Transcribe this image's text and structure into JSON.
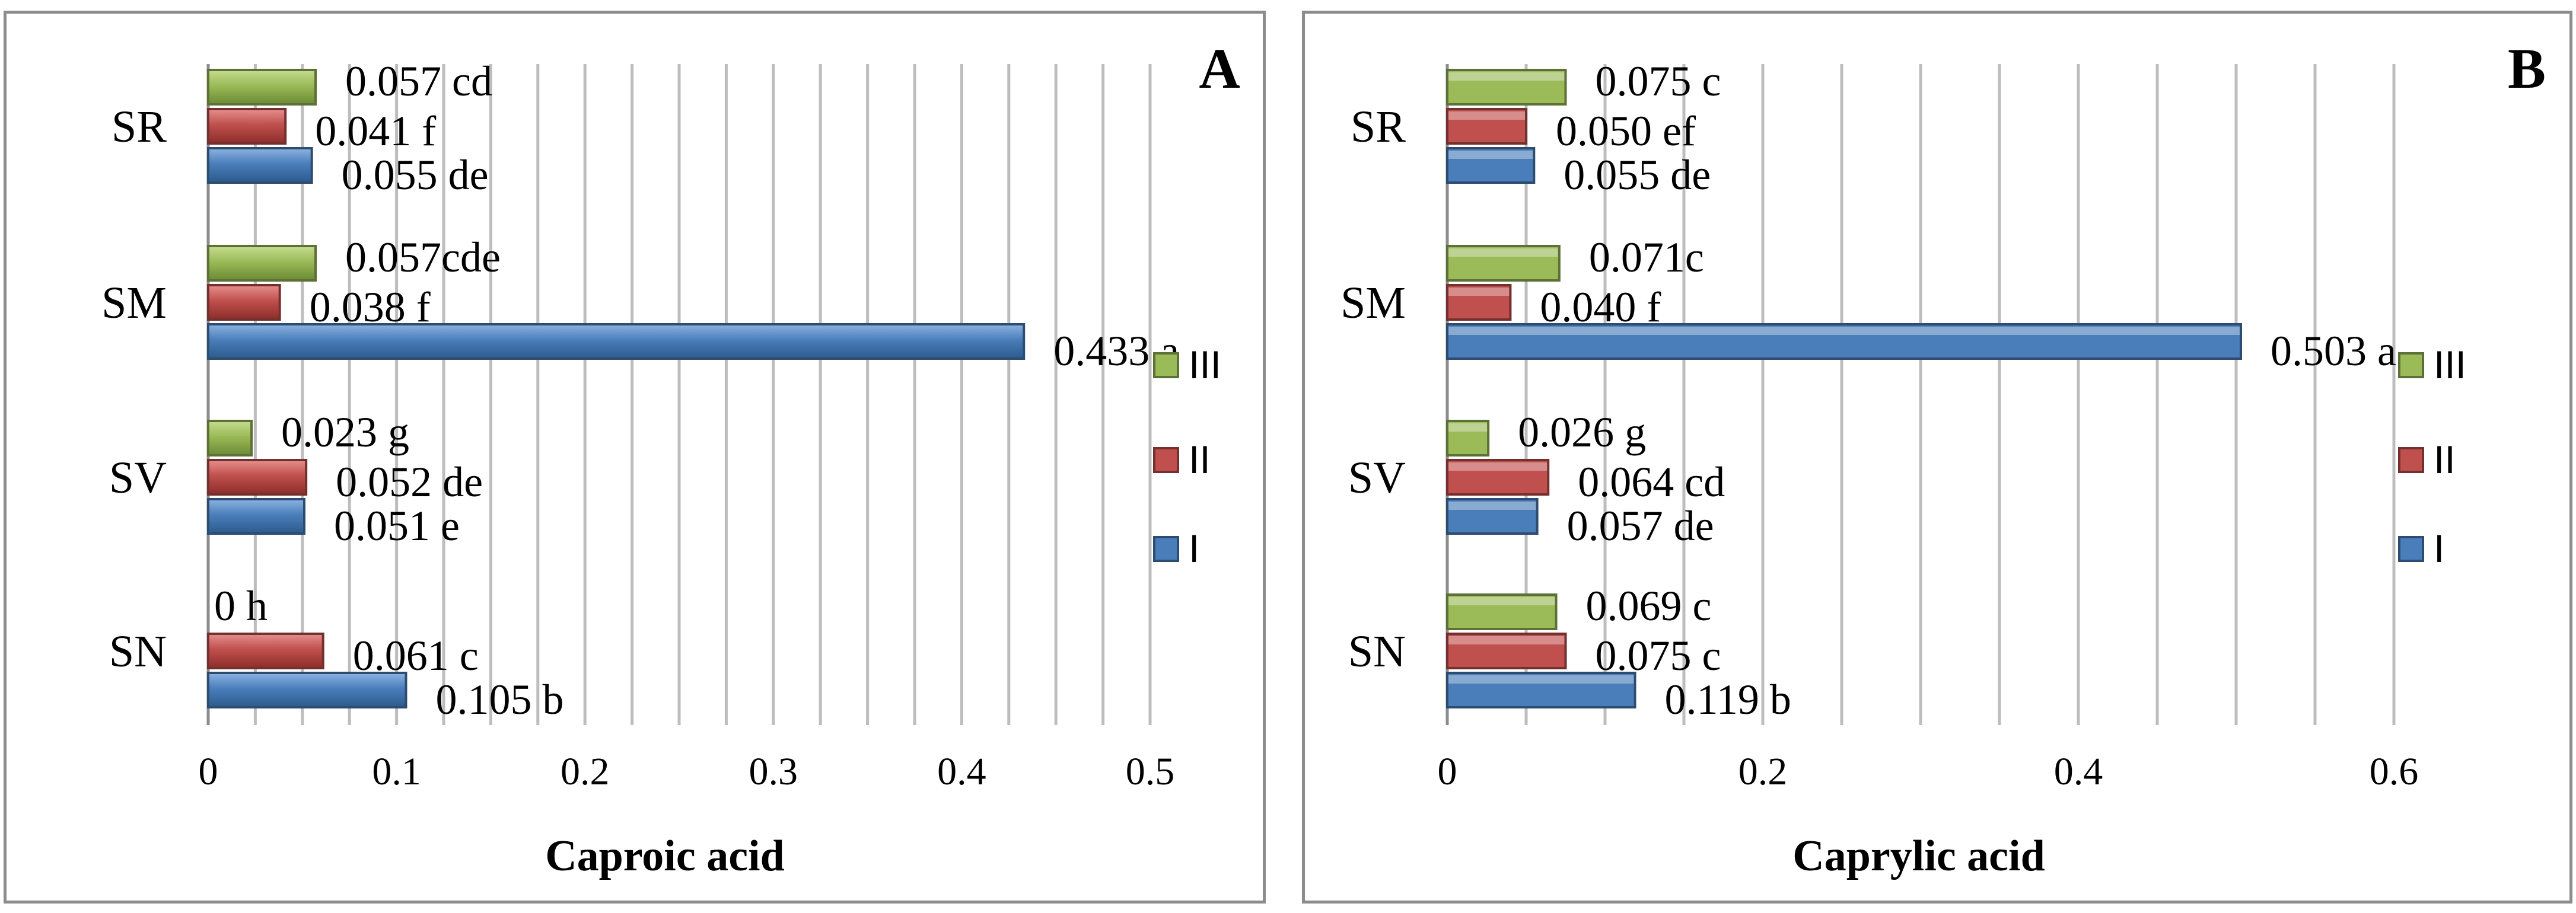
{
  "colors": {
    "I": "#4a7ebb",
    "II": "#c0504d",
    "III": "#9bbb59"
  },
  "chart_data": [
    {
      "type": "bar",
      "orientation": "horizontal",
      "panel_label": "A",
      "title": "",
      "xlabel": "Caproic acid",
      "ylabel": "",
      "xlim": [
        0,
        0.5
      ],
      "ticks": [
        0,
        0.1,
        0.2,
        0.3,
        0.4,
        0.5
      ],
      "tick_labels": [
        "0",
        "0.1",
        "0.2",
        "0.3",
        "0.4",
        "0.5"
      ],
      "minor_grid_step": 0.025,
      "categories": [
        "SN",
        "SV",
        "SM",
        "SR"
      ],
      "legend": [
        "III",
        "II",
        "I"
      ],
      "legend_position": "right",
      "series": [
        {
          "name": "I",
          "values": [
            0.105,
            0.051,
            0.433,
            0.055
          ],
          "labels": [
            "0.105 b",
            "0.051 e",
            "0.433 a",
            "0.055 de"
          ]
        },
        {
          "name": "II",
          "values": [
            0.061,
            0.052,
            0.038,
            0.041
          ],
          "labels": [
            "0.061 c",
            "0.052 de",
            "0.038 f",
            "0.041 f"
          ]
        },
        {
          "name": "III",
          "values": [
            0,
            0.023,
            0.057,
            0.057
          ],
          "labels": [
            "0 h",
            "0.023 g",
            "0.057cde",
            "0.057 cd"
          ]
        }
      ]
    },
    {
      "type": "bar",
      "orientation": "horizontal",
      "panel_label": "B",
      "title": "",
      "xlabel": "Caprylic acid",
      "ylabel": "",
      "xlim": [
        0,
        0.6
      ],
      "ticks": [
        0,
        0.2,
        0.4,
        0.6
      ],
      "tick_labels": [
        "0",
        "0.2",
        "0.4",
        "0.6"
      ],
      "minor_grid_step": 0.05,
      "categories": [
        "SN",
        "SV",
        "SM",
        "SR"
      ],
      "legend": [
        "III",
        "II",
        "I"
      ],
      "legend_position": "right",
      "series": [
        {
          "name": "I",
          "values": [
            0.119,
            0.057,
            0.503,
            0.055
          ],
          "labels": [
            "0.119 b",
            "0.057 de",
            "0.503 a",
            "0.055 de"
          ]
        },
        {
          "name": "II",
          "values": [
            0.075,
            0.064,
            0.04,
            0.05
          ],
          "labels": [
            "0.075 c",
            "0.064 cd",
            "0.040 f",
            "0.050 ef"
          ]
        },
        {
          "name": "III",
          "values": [
            0.069,
            0.026,
            0.071,
            0.075
          ],
          "labels": [
            "0.069 c",
            "0.026 g",
            "0.071c",
            "0.075 c"
          ]
        }
      ]
    }
  ]
}
